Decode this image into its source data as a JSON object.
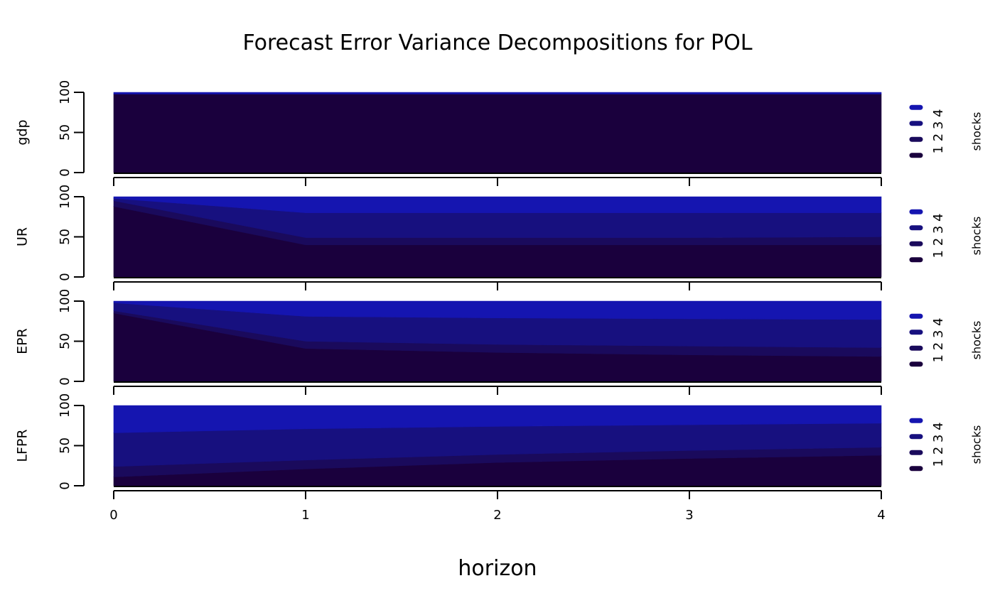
{
  "chart_data": {
    "type": "area",
    "title": "Forecast Error Variance Decompositions for POL",
    "xlabel": "horizon",
    "x": [
      0,
      1,
      2,
      3,
      4
    ],
    "x_tick_labels": [
      "0",
      "1",
      "2",
      "3",
      "4"
    ],
    "ylim": [
      0,
      100
    ],
    "y_tick_labels": [
      "0",
      "50",
      "100"
    ],
    "legend_label": "shocks",
    "legend_placement": "right",
    "colors": [
      "#1a003d",
      "#1a0a5c",
      "#17107f",
      "#1515b0"
    ],
    "series_labels": [
      "1",
      "2",
      "3",
      "4"
    ],
    "panels": [
      {
        "name": "gdp",
        "series": [
          {
            "name": "1",
            "values": [
              98,
              98,
              98,
              98,
              98
            ]
          },
          {
            "name": "2",
            "values": [
              0,
              0,
              0,
              0,
              0
            ]
          },
          {
            "name": "3",
            "values": [
              0,
              0,
              0,
              0,
              0
            ]
          },
          {
            "name": "4",
            "values": [
              2,
              2,
              2,
              2,
              2
            ]
          }
        ]
      },
      {
        "name": "UR",
        "series": [
          {
            "name": "1",
            "values": [
              88,
              40,
              40,
              40,
              40
            ]
          },
          {
            "name": "2",
            "values": [
              7,
              9,
              9,
              9,
              10
            ]
          },
          {
            "name": "3",
            "values": [
              3,
              31,
              31,
              31,
              30
            ]
          },
          {
            "name": "4",
            "values": [
              2,
              20,
              20,
              20,
              20
            ]
          }
        ]
      },
      {
        "name": "EPR",
        "series": [
          {
            "name": "1",
            "values": [
              85,
              41,
              36,
              33,
              31
            ]
          },
          {
            "name": "2",
            "values": [
              3,
              9,
              10,
              11,
              11
            ]
          },
          {
            "name": "3",
            "values": [
              10,
              31,
              33,
              34,
              35
            ]
          },
          {
            "name": "4",
            "values": [
              2,
              19,
              21,
              22,
              23
            ]
          }
        ]
      },
      {
        "name": "LFPR",
        "series": [
          {
            "name": "1",
            "values": [
              11,
              21,
              29,
              34,
              38
            ]
          },
          {
            "name": "2",
            "values": [
              13,
              11,
              10,
              10,
              10
            ]
          },
          {
            "name": "3",
            "values": [
              42,
              39,
              35,
              32,
              30
            ]
          },
          {
            "name": "4",
            "values": [
              34,
              29,
              26,
              24,
              22
            ]
          }
        ]
      }
    ]
  }
}
